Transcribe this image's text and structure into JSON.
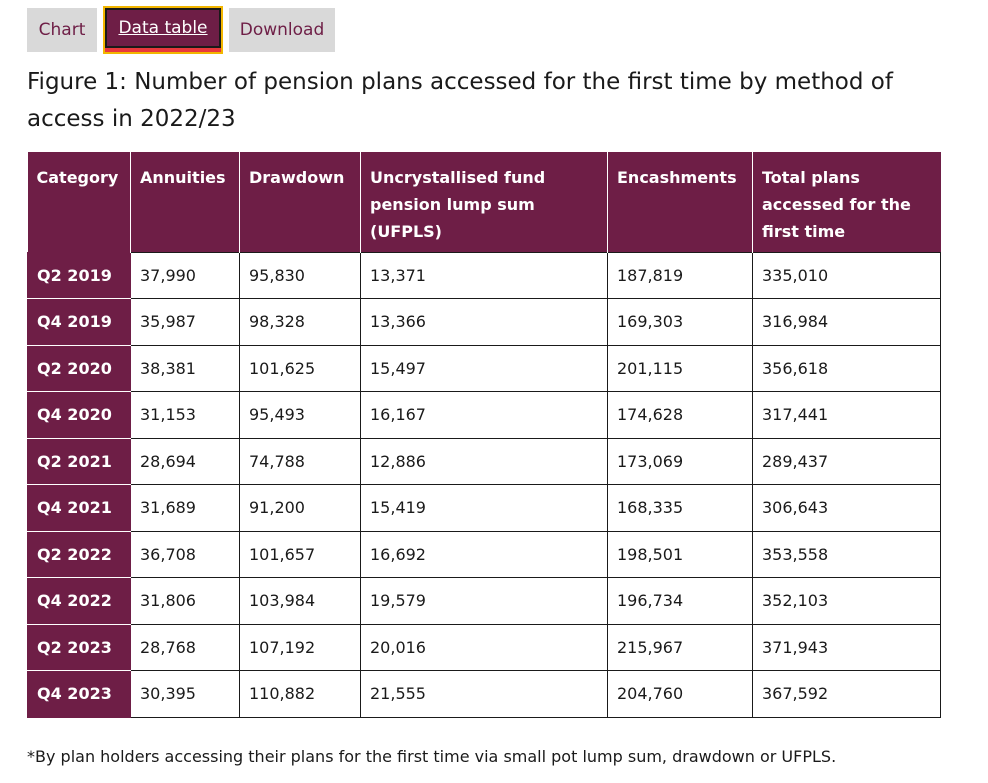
{
  "tabs": [
    {
      "label": "Chart"
    },
    {
      "label": "Data table"
    },
    {
      "label": "Download"
    }
  ],
  "figure_title": "Figure 1: Number of pension plans accessed for the first time by method of access in 2022/23",
  "table": {
    "headers": [
      "Category",
      "Annuities",
      "Drawdown",
      "Uncrystallised fund pension lump sum (UFPLS)",
      "Encashments",
      "Total plans accessed for the first time"
    ],
    "rows": [
      [
        "Q2 2019",
        "37,990",
        "95,830",
        "13,371",
        "187,819",
        "335,010"
      ],
      [
        "Q4 2019",
        "35,987",
        "98,328",
        "13,366",
        "169,303",
        "316,984"
      ],
      [
        "Q2 2020",
        "38,381",
        "101,625",
        "15,497",
        "201,115",
        "356,618"
      ],
      [
        "Q4 2020",
        "31,153",
        "95,493",
        "16,167",
        "174,628",
        "317,441"
      ],
      [
        "Q2 2021",
        "28,694",
        "74,788",
        "12,886",
        "173,069",
        "289,437"
      ],
      [
        "Q4 2021",
        "31,689",
        "91,200",
        "15,419",
        "168,335",
        "306,643"
      ],
      [
        "Q2 2022",
        "36,708",
        "101,657",
        "16,692",
        "198,501",
        "353,558"
      ],
      [
        "Q4 2022",
        "31,806",
        "103,984",
        "19,579",
        "196,734",
        "352,103"
      ],
      [
        "Q2 2023",
        "28,768",
        "107,192",
        "20,016",
        "215,967",
        "371,943"
      ],
      [
        "Q4 2023",
        "30,395",
        "110,882",
        "21,555",
        "204,760",
        "367,592"
      ]
    ]
  },
  "footnote": "*By plan holders accessing their plans for the first time via small pot lump sum, drawdown or UFPLS.",
  "colors": {
    "accent": "#6e1e46",
    "tab_inactive": "#d9d9d9",
    "focus_outline": "#f2b600",
    "active_underline": "#e8383d"
  }
}
